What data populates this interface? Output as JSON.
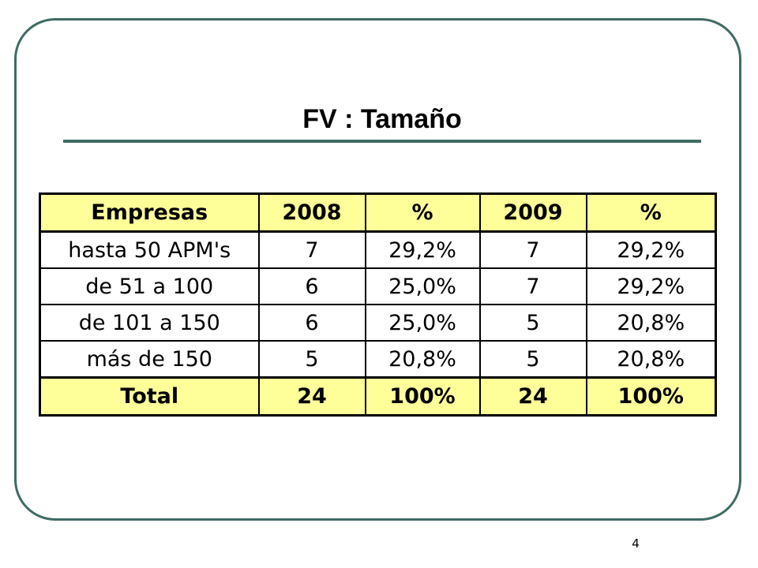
{
  "slide": {
    "title": "FV : Tamaño",
    "page_number": "4"
  },
  "colors": {
    "frame_border": "#3f6b63",
    "title_rule": "#3f6b63",
    "header_fill": "#ffff99",
    "table_border": "#000000"
  },
  "table": {
    "headers": [
      "Empresas",
      "2008",
      "%",
      "2009",
      "%"
    ],
    "rows": [
      [
        "hasta 50 APM's",
        "7",
        "29,2%",
        "7",
        "29,2%"
      ],
      [
        "de 51 a 100",
        "6",
        "25,0%",
        "7",
        "29,2%"
      ],
      [
        "de 101 a 150",
        "6",
        "25,0%",
        "5",
        "20,8%"
      ],
      [
        "más de 150",
        "5",
        "20,8%",
        "5",
        "20,8%"
      ]
    ],
    "total": [
      "Total",
      "24",
      "100%",
      "24",
      "100%"
    ]
  }
}
